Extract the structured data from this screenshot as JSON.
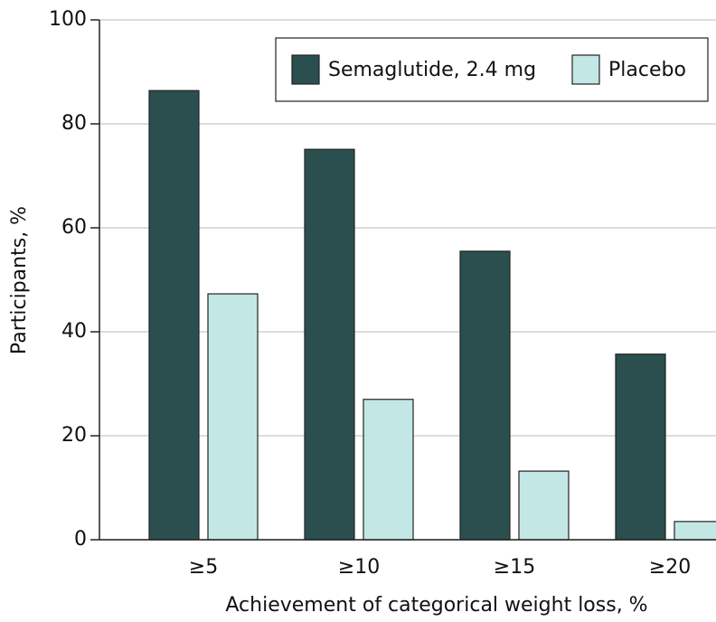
{
  "chart_data": {
    "type": "bar",
    "x_label": "Achievement of categorical weight loss, %",
    "y_label": "Participants, %",
    "categories": [
      "≥5",
      "≥10",
      "≥15",
      "≥20"
    ],
    "series": [
      {
        "name": "Semaglutide, 2.4 mg",
        "color": "#2b4f4e",
        "values": [
          86.4,
          75.1,
          55.5,
          35.7
        ]
      },
      {
        "name": "Placebo",
        "color": "#c3e7e5",
        "values": [
          47.3,
          27.0,
          13.2,
          3.5
        ]
      }
    ],
    "ylim": [
      0,
      100
    ],
    "yticks": [
      0,
      20,
      40,
      60,
      80,
      100
    ],
    "grid": true,
    "legend": "top-right"
  }
}
